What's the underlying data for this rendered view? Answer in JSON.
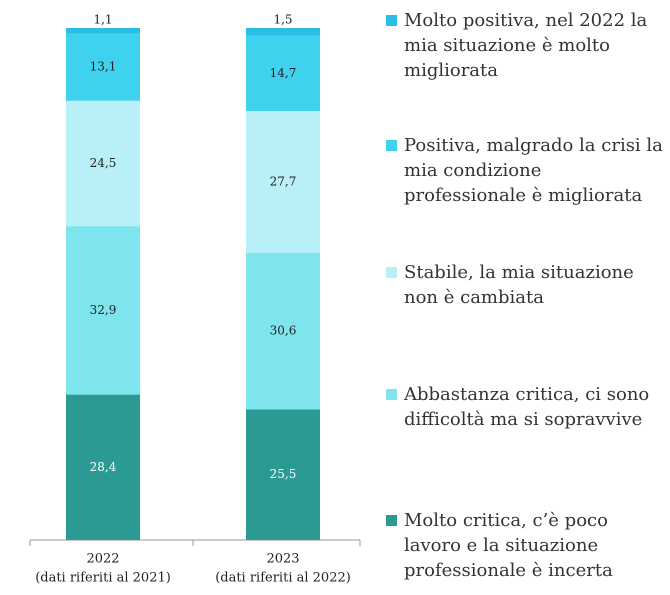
{
  "chart_data": {
    "type": "stacked_bar",
    "categories": [
      "2022",
      "2023"
    ],
    "category_sublabels": [
      "(dati riferiti al 2021)",
      "(dati riferiti al 2022)"
    ],
    "ylim": [
      0,
      100
    ],
    "series": [
      {
        "name": "Molto critica, c’è poco lavoro e la situazione professionale è incerta",
        "color": "#2a9a92",
        "values": [
          28.4,
          25.5
        ],
        "value_labels": [
          "28,4",
          "25,5"
        ]
      },
      {
        "name": "Abbastanza critica, ci sono difficoltà ma si sopravvive",
        "color": "#7ee5ef",
        "values": [
          32.9,
          30.6
        ],
        "value_labels": [
          "32,9",
          "30,6"
        ]
      },
      {
        "name": "Stabile, la mia situazione non è cambiata",
        "color": "#b9eff6",
        "values": [
          24.5,
          27.7
        ],
        "value_labels": [
          "24,5",
          "27,7"
        ]
      },
      {
        "name": "Positiva, malgrado la crisi la mia condizione professionale è migliorata",
        "color": "#3ed2ef",
        "values": [
          13.1,
          14.7
        ],
        "value_labels": [
          "13,1",
          "14,7"
        ]
      },
      {
        "name": "Molto positiva, nel 2022 la mia situazione è molto migliorata",
        "color": "#27bfe6",
        "values": [
          1.1,
          1.5
        ],
        "value_labels": [
          "1,1",
          "1,5"
        ]
      }
    ]
  }
}
